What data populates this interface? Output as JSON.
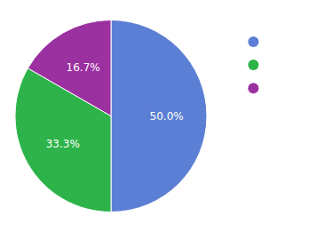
{
  "chart_data": {
    "type": "pie",
    "values": [
      50.0,
      33.3,
      16.7
    ],
    "value_labels": [
      "50.0%",
      "33.3%",
      "16.7%"
    ],
    "colors": [
      "#5b7fd4",
      "#2db34a",
      "#9b30a0"
    ],
    "data_labels": true,
    "legend": "right"
  }
}
